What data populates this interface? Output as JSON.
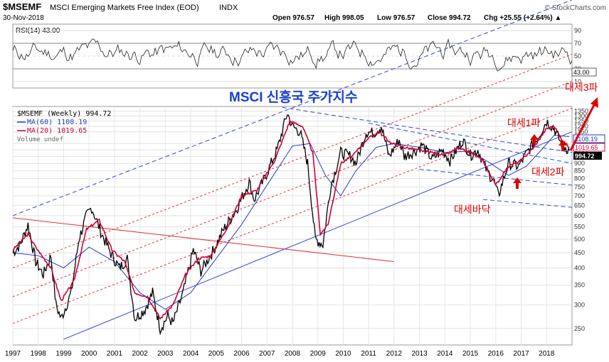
{
  "header": {
    "symbol": "$MSEMF",
    "name": "MSCI Emerging Markets Free Index (EOD)",
    "exchange": "INDX",
    "date": "30-Nov-2018",
    "brand": "© StockCharts.com",
    "open": "Open 976.57",
    "high": "High 998.05",
    "low": "Low 976.57",
    "close": "Close 994.72",
    "chg": "Chg +25.55 (+2.64%) ▲"
  },
  "rsi_panel": {
    "label": "RSI(14) 43.00",
    "ticks": [
      90,
      70,
      50,
      30,
      10
    ],
    "current": "43.00"
  },
  "price_panel": {
    "legend": [
      {
        "text": "$MSEMF (Weekly) 994.72",
        "color": "#000000"
      },
      {
        "text": "MA(60) 1108.19",
        "color": "#1f3fbf"
      },
      {
        "text": "MA(20) 1019.65",
        "color": "#cc0033"
      },
      {
        "text": "Volume undef",
        "color": "#666666"
      }
    ],
    "y_ticks": [
      1350,
      1300,
      1250,
      1200,
      1150,
      1050,
      1000,
      950,
      900,
      850,
      800,
      750,
      700,
      650,
      600,
      550,
      500,
      450,
      400,
      350,
      300,
      250
    ],
    "value_tags": {
      "ma60": "1108.19",
      "ma20": "1019.65",
      "close": "994.72"
    }
  },
  "annotations": {
    "main_title": "MSCI 신흥국 주가지수",
    "wave1": "대세1파",
    "wave2": "대세2파",
    "wave3": "대세3파",
    "bottom": "대세바닥"
  },
  "colors": {
    "price": "#000000",
    "ma60": "#1f3fbf",
    "ma20": "#cc0033",
    "channel_blue": "#3344dd",
    "channel_red": "#dd3333",
    "annot_red": "#dd0000",
    "title_blue": "#1a3fd0"
  },
  "chart_data": {
    "type": "line",
    "title": "$MSEMF MSCI Emerging Markets Free Index (EOD) — Weekly",
    "x_ticks": [
      "1997",
      "1998",
      "1999",
      "2000",
      "2001",
      "2002",
      "2003",
      "2004",
      "2005",
      "2006",
      "2007",
      "2008",
      "2009",
      "2010",
      "2011",
      "2012",
      "2013",
      "2014",
      "2015",
      "2016",
      "2017",
      "2018"
    ],
    "xlim": [
      1997.0,
      2019.0
    ],
    "ylim": [
      220,
      1400
    ],
    "y_scale": "log",
    "series": [
      {
        "name": "$MSEMF (Weekly)",
        "x": [
          1997.0,
          1997.3,
          1997.6,
          1997.9,
          1998.2,
          1998.5,
          1998.7,
          1998.9,
          1999.3,
          1999.6,
          1999.9,
          2000.1,
          2000.5,
          2000.9,
          2001.2,
          2001.5,
          2001.8,
          2002.2,
          2002.5,
          2002.8,
          2003.1,
          2003.3,
          2003.7,
          2004.1,
          2004.4,
          2004.9,
          2005.3,
          2005.8,
          2006.3,
          2006.5,
          2006.9,
          2007.4,
          2007.8,
          2008.0,
          2008.3,
          2008.6,
          2008.9,
          2009.2,
          2009.5,
          2009.9,
          2010.3,
          2010.5,
          2010.9,
          2011.2,
          2011.5,
          2011.8,
          2012.2,
          2012.4,
          2012.9,
          2013.1,
          2013.5,
          2013.9,
          2014.2,
          2014.7,
          2015.0,
          2015.3,
          2015.7,
          2015.9,
          2016.1,
          2016.5,
          2016.9,
          2017.3,
          2017.7,
          2018.0,
          2018.3,
          2018.6,
          2018.9
        ],
        "values": [
          450,
          480,
          560,
          420,
          380,
          440,
          300,
          270,
          330,
          500,
          600,
          640,
          520,
          440,
          400,
          430,
          270,
          290,
          330,
          250,
          275,
          260,
          330,
          460,
          390,
          460,
          540,
          630,
          780,
          680,
          800,
          1000,
          1330,
          1200,
          1150,
          900,
          500,
          480,
          750,
          980,
          950,
          900,
          1150,
          1140,
          1200,
          950,
          1080,
          950,
          1000,
          1040,
          930,
          1000,
          920,
          1080,
          960,
          1000,
          830,
          800,
          700,
          900,
          880,
          1000,
          1120,
          1250,
          1180,
          1040,
          994.72
        ]
      },
      {
        "name": "MA(60)",
        "x": [
          1997.0,
          1998.0,
          1999.0,
          2000.0,
          2001.0,
          2002.0,
          2003.0,
          2004.0,
          2005.0,
          2006.0,
          2007.0,
          2008.0,
          2008.7,
          2009.3,
          2009.9,
          2010.5,
          2011.3,
          2012.0,
          2013.0,
          2014.0,
          2015.0,
          2015.8,
          2016.5,
          2017.2,
          2017.8,
          2018.3,
          2018.9
        ],
        "values": [
          450,
          440,
          400,
          470,
          420,
          330,
          290,
          330,
          430,
          560,
          760,
          1030,
          1050,
          820,
          700,
          850,
          1020,
          1050,
          1020,
          980,
          990,
          900,
          820,
          880,
          1000,
          1120,
          1108.19
        ]
      },
      {
        "name": "MA(20)",
        "x": [
          1997.0,
          1997.6,
          1997.9,
          1998.5,
          1998.9,
          1999.4,
          1999.9,
          2000.4,
          2000.9,
          2001.4,
          2001.8,
          2002.3,
          2002.8,
          2003.3,
          2003.8,
          2004.3,
          2004.8,
          2005.5,
          2006.0,
          2006.6,
          2007.3,
          2007.9,
          2008.4,
          2008.8,
          2009.1,
          2009.4,
          2009.9,
          2010.4,
          2010.9,
          2011.4,
          2011.9,
          2012.4,
          2012.9,
          2013.5,
          2014.0,
          2014.5,
          2015.0,
          2015.5,
          2016.0,
          2016.5,
          2017.0,
          2017.5,
          2018.0,
          2018.3,
          2018.6,
          2018.9
        ],
        "values": [
          460,
          520,
          470,
          400,
          310,
          360,
          540,
          580,
          460,
          420,
          330,
          320,
          270,
          300,
          380,
          430,
          440,
          560,
          700,
          730,
          920,
          1250,
          1200,
          980,
          520,
          560,
          900,
          960,
          1080,
          1150,
          1050,
          1020,
          1000,
          980,
          960,
          1010,
          980,
          920,
          760,
          880,
          920,
          1020,
          1180,
          1200,
          1080,
          1019.65
        ]
      }
    ],
    "rsi": {
      "name": "RSI(14)",
      "last": 43.0,
      "ylim": [
        0,
        100
      ],
      "levels": [
        70,
        30
      ]
    },
    "xlabel": "",
    "ylabel": ""
  }
}
